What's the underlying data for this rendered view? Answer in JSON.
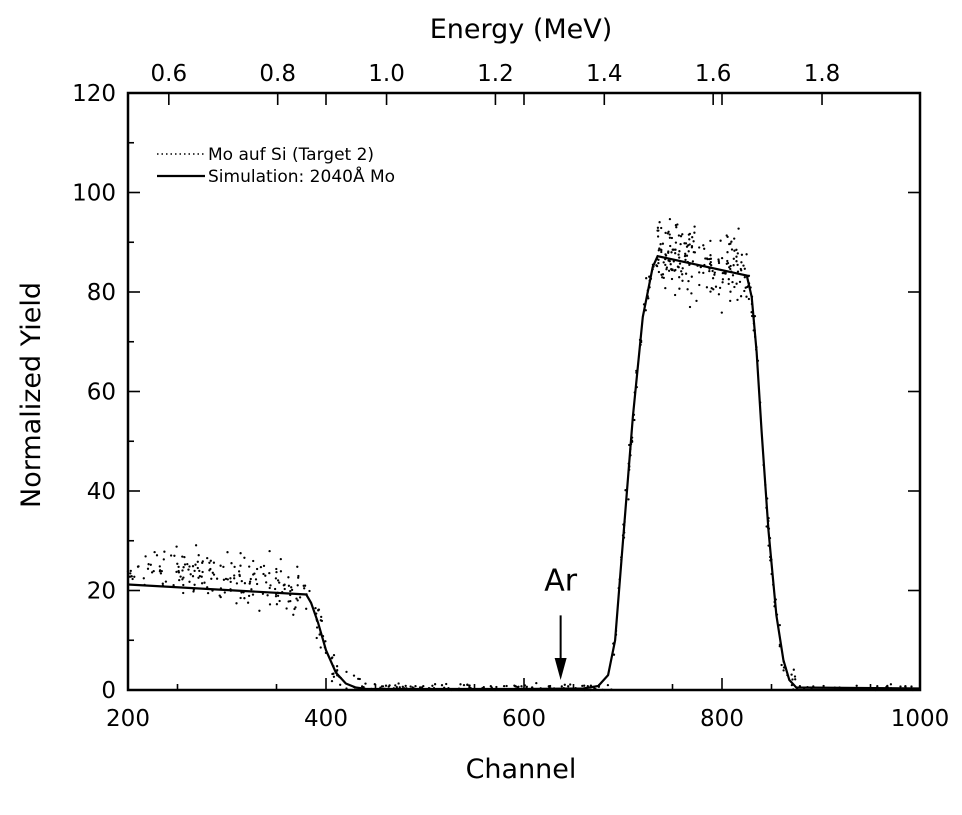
{
  "chart_data": {
    "type": "scatter",
    "title": "",
    "xlabel": "Channel",
    "ylabel": "Normalized Yield",
    "x2label": "Energy (MeV)",
    "xlim": [
      200,
      1000
    ],
    "ylim": [
      0,
      120
    ],
    "x2lim": [
      0.525,
      1.98
    ],
    "xticks": [
      200,
      400,
      600,
      800,
      1000
    ],
    "xtick_labels": [
      "200",
      "400",
      "600",
      "800",
      "1000"
    ],
    "yticks": [
      0,
      20,
      40,
      60,
      80,
      100,
      120
    ],
    "ytick_labels": [
      "0",
      "20",
      "40",
      "60",
      "80",
      "100",
      "120"
    ],
    "x2ticks": [
      0.6,
      0.8,
      1.0,
      1.2,
      1.4,
      1.6,
      1.8
    ],
    "x2tick_labels": [
      "0.6",
      "0.8",
      "1.0",
      "1.2",
      "1.4",
      "1.6",
      "1.8"
    ],
    "grid": false,
    "legend_position": "top-left",
    "series": [
      {
        "name": "Mo auf Si (Target 2)",
        "style": "dots",
        "bands": [
          {
            "x": [
              200,
              380
            ],
            "y_start": 24.5,
            "y_end": 20.5,
            "spread": 3.2,
            "n": 190
          },
          {
            "x": [
              380,
              435
            ],
            "y_profile": "edge_down_si",
            "spread": 2.0,
            "n": 45
          },
          {
            "x": [
              435,
              690
            ],
            "y": 0.4,
            "spread": 0.6,
            "n": 150
          },
          {
            "x": [
              690,
              735
            ],
            "y_profile": "edge_up_mo",
            "spread": 2.5,
            "n": 60
          },
          {
            "x": [
              735,
              825
            ],
            "y_start": 87.5,
            "y_end": 84.0,
            "spread": 4.5,
            "n": 200
          },
          {
            "x": [
              825,
              875
            ],
            "y_profile": "edge_down_mo",
            "spread": 2.5,
            "n": 60
          },
          {
            "x": [
              875,
              1000
            ],
            "y": 0.3,
            "spread": 0.5,
            "n": 40
          }
        ]
      },
      {
        "name": "Simulation: 2040Å Mo",
        "style": "line",
        "x": [
          200,
          380,
          385,
          392,
          400,
          410,
          420,
          430,
          440,
          455,
          600,
          660,
          675,
          685,
          692,
          700,
          710,
          720,
          730,
          735,
          825,
          830,
          835,
          840,
          847,
          855,
          862,
          868,
          875,
          1000
        ],
        "y": [
          21.2,
          19.2,
          17.5,
          13.5,
          8.0,
          3.5,
          1.3,
          0.5,
          0.25,
          0.2,
          0.2,
          0.3,
          0.8,
          3.0,
          10.0,
          30.0,
          55.0,
          75.0,
          85.0,
          87.2,
          83.3,
          79.0,
          68.0,
          52.0,
          32.0,
          15.0,
          6.0,
          2.0,
          0.5,
          0.3
        ]
      }
    ],
    "annotations": [
      {
        "text": "Ar",
        "x": 637,
        "y_text": 20,
        "arrow_from_y": 15,
        "arrow_to_y": 2
      }
    ]
  }
}
